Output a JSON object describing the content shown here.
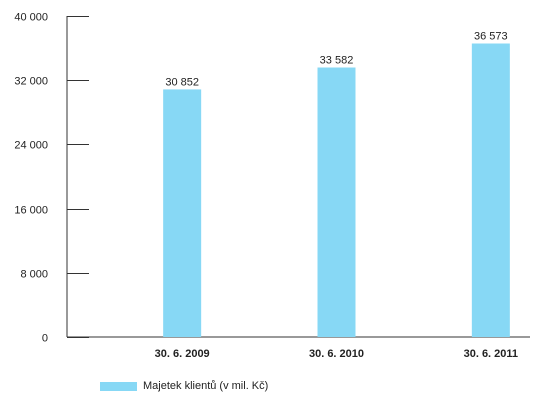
{
  "chart_data": {
    "type": "bar",
    "categories": [
      "30. 6. 2009",
      "30. 6. 2010",
      "30. 6. 2011"
    ],
    "series": [
      {
        "name": "Majetek klientů (v mil. Kč)",
        "values": [
          30852,
          33582,
          36573
        ],
        "value_labels": [
          "30 852",
          "33 582",
          "36 573"
        ],
        "color": "#87d8f5"
      }
    ],
    "ylim": [
      0,
      40000
    ],
    "yticks": [
      0,
      8000,
      16000,
      24000,
      32000,
      40000
    ],
    "ytick_labels": [
      "0",
      "8 000",
      "16 000",
      "24 000",
      "32 000",
      "40 000"
    ],
    "grid": false,
    "legend_position": "bottom-left"
  }
}
